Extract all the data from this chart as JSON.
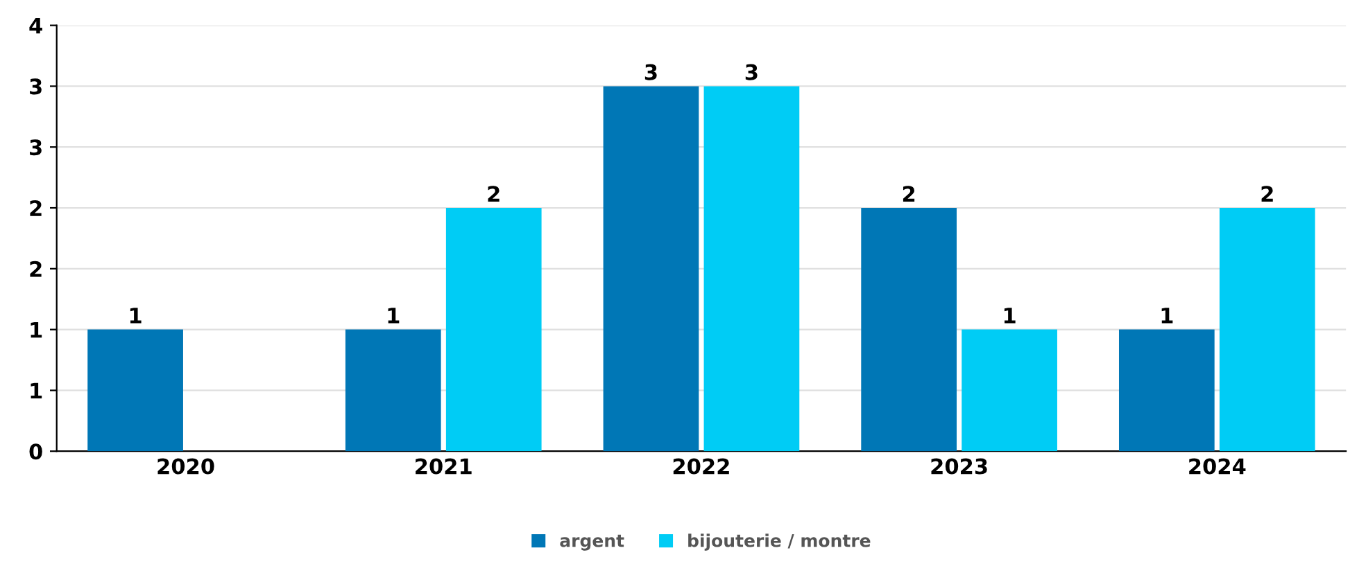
{
  "chart_data": {
    "type": "bar",
    "categories": [
      "2020",
      "2021",
      "2022",
      "2023",
      "2024"
    ],
    "series": [
      {
        "name": "argent",
        "color": "#0077b6",
        "values": [
          1,
          1,
          3,
          2,
          1
        ]
      },
      {
        "name": "bijouterie / montre",
        "color": "#00ccf5",
        "values": [
          null,
          2,
          3,
          1,
          2
        ]
      }
    ],
    "ylim": [
      0,
      3.5
    ],
    "yticks": [
      0,
      {
        "value": 0.5,
        "label": "1"
      },
      1,
      {
        "value": 1.5,
        "label": "2"
      },
      2,
      {
        "value": 2.5,
        "label": "3"
      },
      3,
      {
        "value": 3.5,
        "label": "4"
      }
    ],
    "grid": "y",
    "legend": "bottom",
    "data_labels": true
  }
}
